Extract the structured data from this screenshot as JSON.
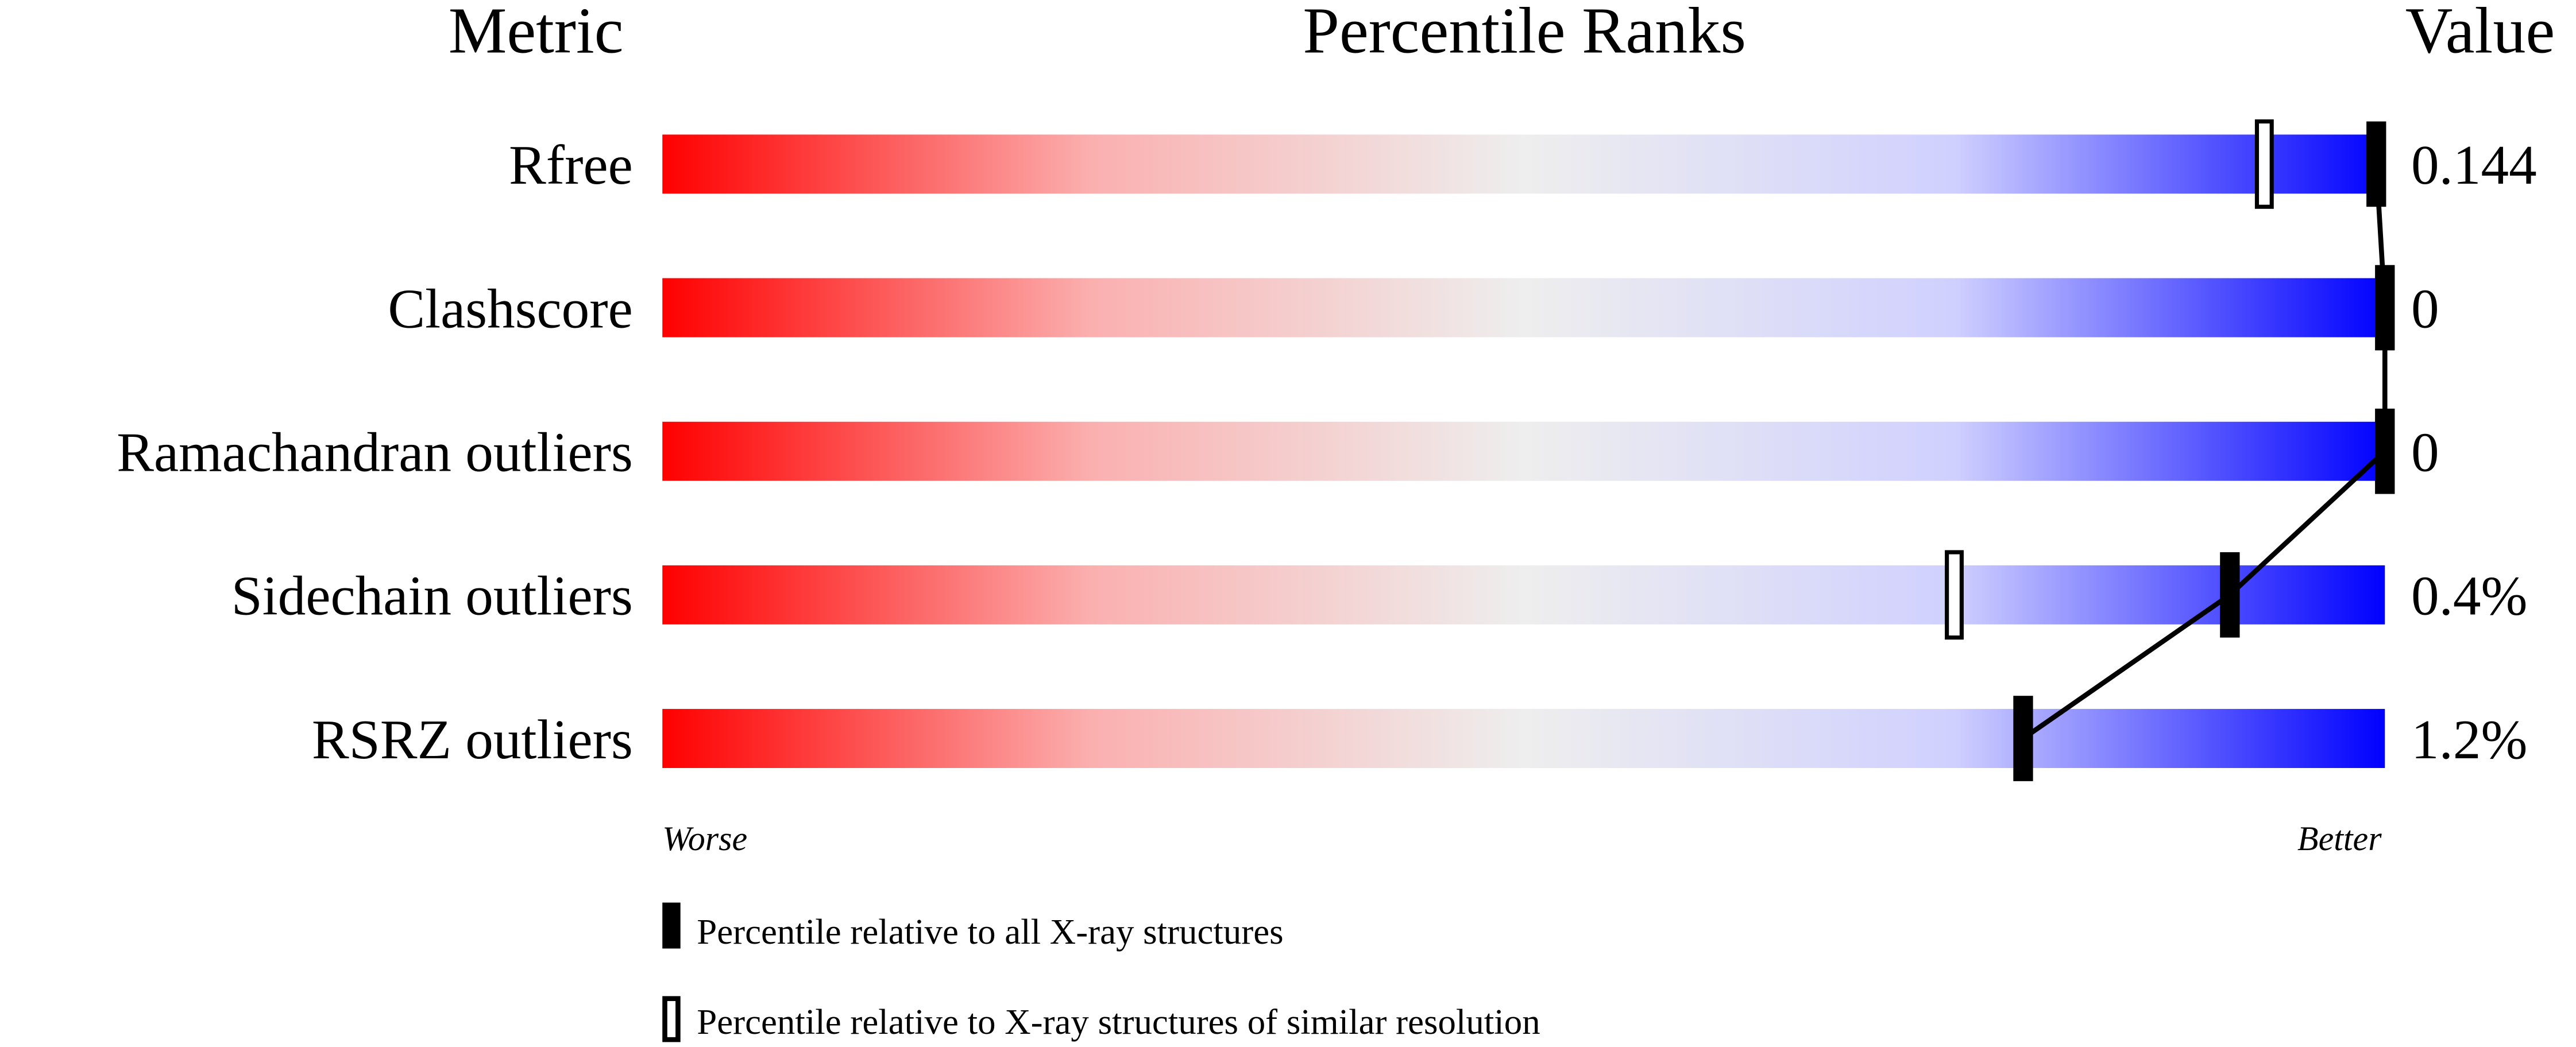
{
  "chart_data": {
    "type": "percentile-bar",
    "headers": {
      "metric": "Metric",
      "ranks": "Percentile Ranks",
      "value": "Value"
    },
    "xlim": [
      0,
      100
    ],
    "metrics": [
      {
        "name": "Rfree",
        "value": "0.144",
        "percentile_all": 99.5,
        "percentile_similar": 93
      },
      {
        "name": "Clashscore",
        "value": "0",
        "percentile_all": 100,
        "percentile_similar": null
      },
      {
        "name": "Ramachandran outliers",
        "value": "0",
        "percentile_all": 100,
        "percentile_similar": null
      },
      {
        "name": "Sidechain outliers",
        "value": "0.4%",
        "percentile_all": 91,
        "percentile_similar": 75
      },
      {
        "name": "RSRZ outliers",
        "value": "1.2%",
        "percentile_all": 79,
        "percentile_similar": null
      }
    ],
    "axis_labels": {
      "worse": "Worse",
      "better": "Better"
    },
    "legend": {
      "all": "Percentile relative to all X-ray structures",
      "similar": "Percentile relative to X-ray structures of similar resolution"
    },
    "colors": {
      "worse": "#ff0000",
      "middle": "#eeeeee",
      "better": "#0000ff",
      "marker": "#000000"
    }
  }
}
